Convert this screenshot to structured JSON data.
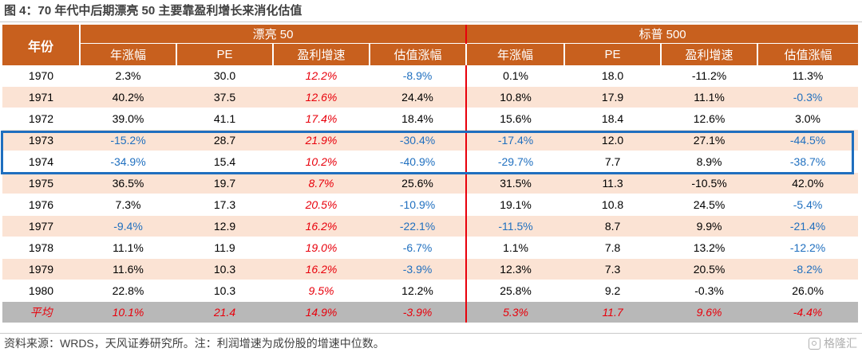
{
  "title": "图 4：70 年代中后期漂亮 50 主要靠盈利增长来消化估值",
  "header": {
    "year_label": "年份",
    "groups": [
      "漂亮 50",
      "标普 500"
    ],
    "columns": [
      "年涨幅",
      "PE",
      "盈利增速",
      "估值涨幅",
      "年涨幅",
      "PE",
      "盈利增速",
      "估值涨幅"
    ]
  },
  "rows": [
    [
      "1970",
      "2.3%",
      "30.0",
      "12.2%",
      "-8.9%",
      "0.1%",
      "18.0",
      "-11.2%",
      "11.3%"
    ],
    [
      "1971",
      "40.2%",
      "37.5",
      "12.6%",
      "24.4%",
      "10.8%",
      "17.9",
      "11.1%",
      "-0.3%"
    ],
    [
      "1972",
      "39.0%",
      "41.1",
      "17.4%",
      "18.4%",
      "15.6%",
      "18.4",
      "12.6%",
      "3.0%"
    ],
    [
      "1973",
      "-15.2%",
      "28.7",
      "21.9%",
      "-30.4%",
      "-17.4%",
      "12.0",
      "27.1%",
      "-44.5%"
    ],
    [
      "1974",
      "-34.9%",
      "15.4",
      "10.2%",
      "-40.9%",
      "-29.7%",
      "7.7",
      "8.9%",
      "-38.7%"
    ],
    [
      "1975",
      "36.5%",
      "19.7",
      "8.7%",
      "25.6%",
      "31.5%",
      "11.3",
      "-10.5%",
      "42.0%"
    ],
    [
      "1976",
      "7.3%",
      "17.3",
      "20.5%",
      "-10.9%",
      "19.1%",
      "10.8",
      "24.5%",
      "-5.4%"
    ],
    [
      "1977",
      "-9.4%",
      "12.9",
      "16.2%",
      "-22.1%",
      "-11.5%",
      "8.7",
      "9.9%",
      "-21.4%"
    ],
    [
      "1978",
      "11.1%",
      "11.9",
      "19.0%",
      "-6.7%",
      "1.1%",
      "7.8",
      "13.2%",
      "-12.2%"
    ],
    [
      "1979",
      "11.6%",
      "10.3",
      "16.2%",
      "-3.9%",
      "12.3%",
      "7.3",
      "20.5%",
      "-8.2%"
    ],
    [
      "1980",
      "22.8%",
      "10.3",
      "9.5%",
      "12.2%",
      "25.8%",
      "9.2",
      "-0.3%",
      "26.0%"
    ]
  ],
  "average": [
    "平均",
    "10.1%",
    "21.4",
    "14.9%",
    "-3.9%",
    "5.3%",
    "11.7",
    "9.6%",
    "-4.4%"
  ],
  "source": "资料来源：WRDS，天风证券研究所。注：利润增速为成份股的增速中位数。",
  "watermark": "格隆汇",
  "colors": {
    "header_bg": "#c8601e",
    "peach_row": "#fbe3d4",
    "negative_blue": "#1f6fbf",
    "growth_red": "#e8000b",
    "average_bg": "#b8b8b8",
    "highlight_box": "#1f6fbf"
  }
}
